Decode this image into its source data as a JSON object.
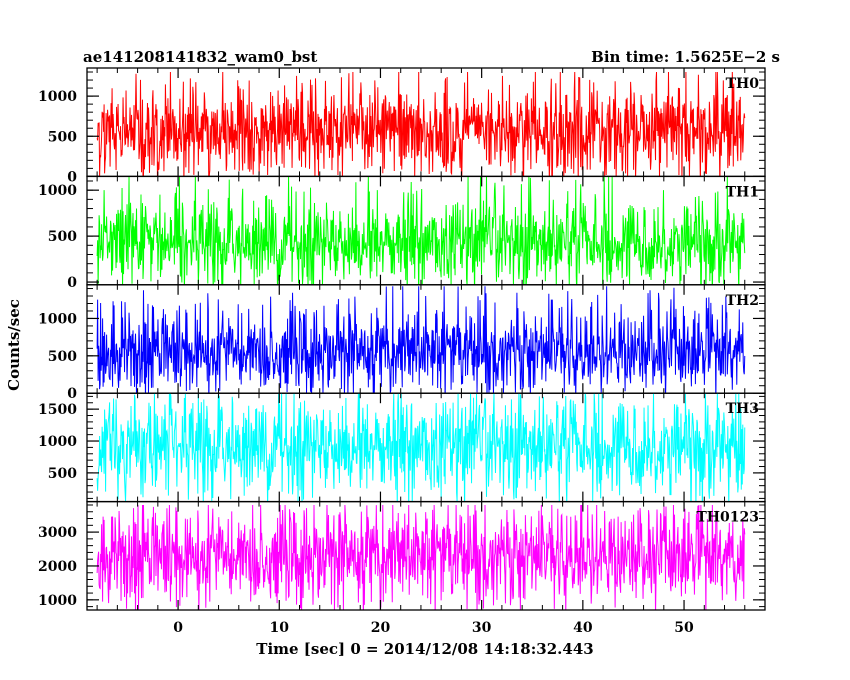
{
  "header": {
    "title": "ae141208141832_wam0_bst",
    "bin_time": "Bin time: 1.5625E−2 s"
  },
  "chart_data": {
    "type": "line",
    "title": "ae141208141832_wam0_bst",
    "subtitle": "Bin time: 1.5625E−2 s",
    "xlabel": "Time [sec] 0 = 2014/12/08 14:18:32.443",
    "ylabel": "Counts/sec",
    "xlim": [
      -9,
      58
    ],
    "x_ticks": [
      0,
      10,
      20,
      30,
      40,
      50
    ],
    "x_data_range": [
      -8,
      56
    ],
    "bin_time_s": 0.015625,
    "grid": false,
    "panels": [
      {
        "name": "TH0",
        "color": "#ff0000",
        "ylim": [
          0,
          1350
        ],
        "y_ticks": [
          0,
          500,
          1000
        ],
        "mean": 560,
        "typical_range": [
          130,
          1000
        ],
        "max": 1300
      },
      {
        "name": "TH1",
        "color": "#00ff00",
        "ylim": [
          -30,
          1150
        ],
        "y_ticks": [
          0,
          500,
          1000
        ],
        "mean": 420,
        "typical_range": [
          80,
          800
        ],
        "max": 1150
      },
      {
        "name": "TH2",
        "color": "#0000ff",
        "ylim": [
          0,
          1450
        ],
        "y_ticks": [
          0,
          500,
          1000
        ],
        "mean": 560,
        "typical_range": [
          140,
          1000
        ],
        "max": 1430
      },
      {
        "name": "TH3",
        "color": "#00ffff",
        "ylim": [
          50,
          1750
        ],
        "y_ticks": [
          500,
          1000,
          1500
        ],
        "mean": 900,
        "typical_range": [
          300,
          1500
        ],
        "max": 1750
      },
      {
        "name": "TH0123",
        "color": "#ff00ff",
        "ylim": [
          700,
          3900
        ],
        "y_ticks": [
          1000,
          2000,
          3000
        ],
        "mean": 2300,
        "typical_range": [
          1100,
          3300
        ],
        "max": 3800
      }
    ]
  }
}
